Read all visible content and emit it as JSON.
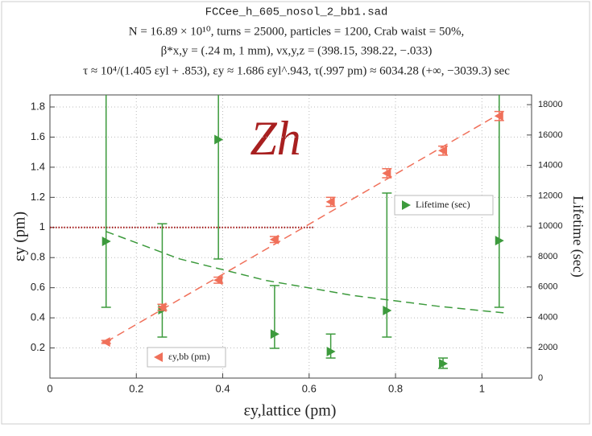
{
  "chart_data": {
    "type": "scatter",
    "title": "FCCee_h_605_nosol_2_bb1.sad",
    "subtitle": [
      "N = 16.89 × 10¹⁰, turns = 25000, particles = 1200, Crab waist = 50%,",
      "β*x,y = (.24 m, 1 mm), νx,y,z = (398.15, 398.22, −.033)",
      "τ ≈ 10⁴/(1.405 εyl + .853),  εy ≈ 1.686 εyl^.943,  τ(.997 pm) ≈ 6034.28 (+∞, −3039.3) sec"
    ],
    "annotation": "Zh",
    "x_label": "εy,lattice (pm)",
    "y_label": "εy (pm)",
    "y2_label": "Lifetime (sec)",
    "x": [
      0.13,
      0.26,
      0.39,
      0.52,
      0.65,
      0.78,
      0.91,
      1.04
    ],
    "series": [
      {
        "name": "Lifetime (sec)",
        "color": "#3c9a3c",
        "axis": "y2",
        "marker": "right",
        "values": [
          9000,
          4500,
          15700,
          2900,
          1750,
          4450,
          950,
          9050
        ],
        "lower": [
          4660,
          2700,
          7840,
          1960,
          1320,
          2700,
          640,
          4660
        ],
        "upper": [
          null,
          10160,
          null,
          6090,
          2900,
          12180,
          1320,
          null
        ]
      },
      {
        "name": "εy,bb (pm)",
        "color": "#f0705a",
        "axis": "y",
        "marker": "left",
        "values": [
          0.24,
          0.47,
          0.65,
          0.92,
          1.17,
          1.36,
          1.51,
          1.74
        ],
        "lower": [
          0.23,
          0.45,
          0.63,
          0.9,
          1.14,
          1.33,
          1.48,
          1.71
        ],
        "upper": [
          0.25,
          0.49,
          0.67,
          0.94,
          1.2,
          1.39,
          1.54,
          1.77
        ]
      }
    ],
    "fits": [
      {
        "color": "#f0705a",
        "axis": "y",
        "x": [
          0.13,
          1.05
        ],
        "values": [
          0.24,
          1.77
        ]
      },
      {
        "color": "#3c9a3c",
        "axis": "y2",
        "x": [
          0.13,
          0.3,
          0.5,
          0.7,
          0.9,
          1.05
        ],
        "values": [
          9650,
          7846,
          6429,
          5445,
          4723,
          4295
        ]
      }
    ],
    "reference_line": {
      "y": 1,
      "x": [
        0,
        0.61
      ],
      "color": "#a01010"
    },
    "xlim": [
      0,
      1.115
    ],
    "ylim": [
      0,
      1.88
    ],
    "y2lim": [
      0,
      18640
    ],
    "xticks": [
      0,
      0.2,
      0.4,
      0.6,
      0.8,
      1
    ],
    "yticks": [
      0.2,
      0.4,
      0.6,
      0.8,
      1,
      1.2,
      1.4,
      1.6,
      1.8
    ],
    "y2ticks": [
      0,
      2000,
      4000,
      6000,
      8000,
      10000,
      12000,
      14000,
      16000,
      18000
    ],
    "grid": true
  }
}
